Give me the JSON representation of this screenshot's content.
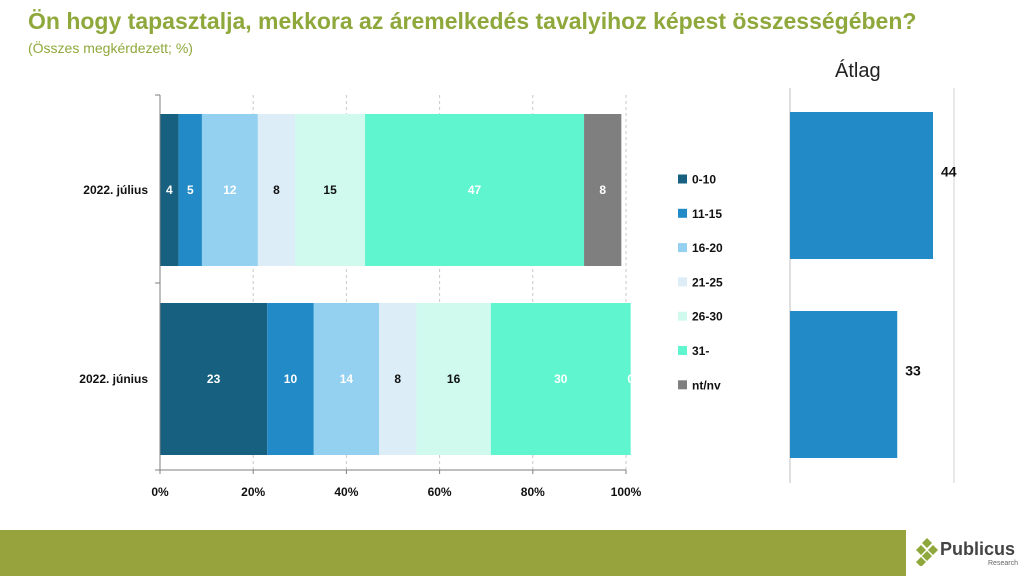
{
  "header": {
    "title": "Ön hogy tapasztalja, mekkora az áremelkedés tavalyihoz képest összességében?",
    "subtitle": "(Összes megkérdezett; %)"
  },
  "chart_data": [
    {
      "type": "bar",
      "orientation": "horizontal",
      "stacked": true,
      "categories": [
        "2022. július",
        "2022. június"
      ],
      "series": [
        {
          "name": "0-10",
          "color": "#17607f",
          "values": [
            4,
            23
          ]
        },
        {
          "name": "11-15",
          "color": "#228ac6",
          "values": [
            5,
            10
          ]
        },
        {
          "name": "16-20",
          "color": "#94d0ef",
          "values": [
            12,
            14
          ]
        },
        {
          "name": "21-25",
          "color": "#dcedf8",
          "values": [
            8,
            8
          ]
        },
        {
          "name": "26-30",
          "color": "#cffaed",
          "values": [
            15,
            16
          ]
        },
        {
          "name": "31-",
          "color": "#5ef5cf",
          "values": [
            47,
            30
          ]
        },
        {
          "name": "nt/nv",
          "color": "#7f7f7f",
          "values": [
            8,
            0
          ]
        }
      ],
      "x_ticks": [
        "0%",
        "20%",
        "40%",
        "60%",
        "80%",
        "100%"
      ],
      "xlim": [
        0,
        100
      ],
      "grid": true,
      "legend": "right"
    },
    {
      "type": "bar",
      "orientation": "horizontal",
      "title": "Átlag",
      "categories": [
        "2022. július",
        "2022. június"
      ],
      "values": [
        44,
        33
      ],
      "color": "#228ac6"
    }
  ]
}
